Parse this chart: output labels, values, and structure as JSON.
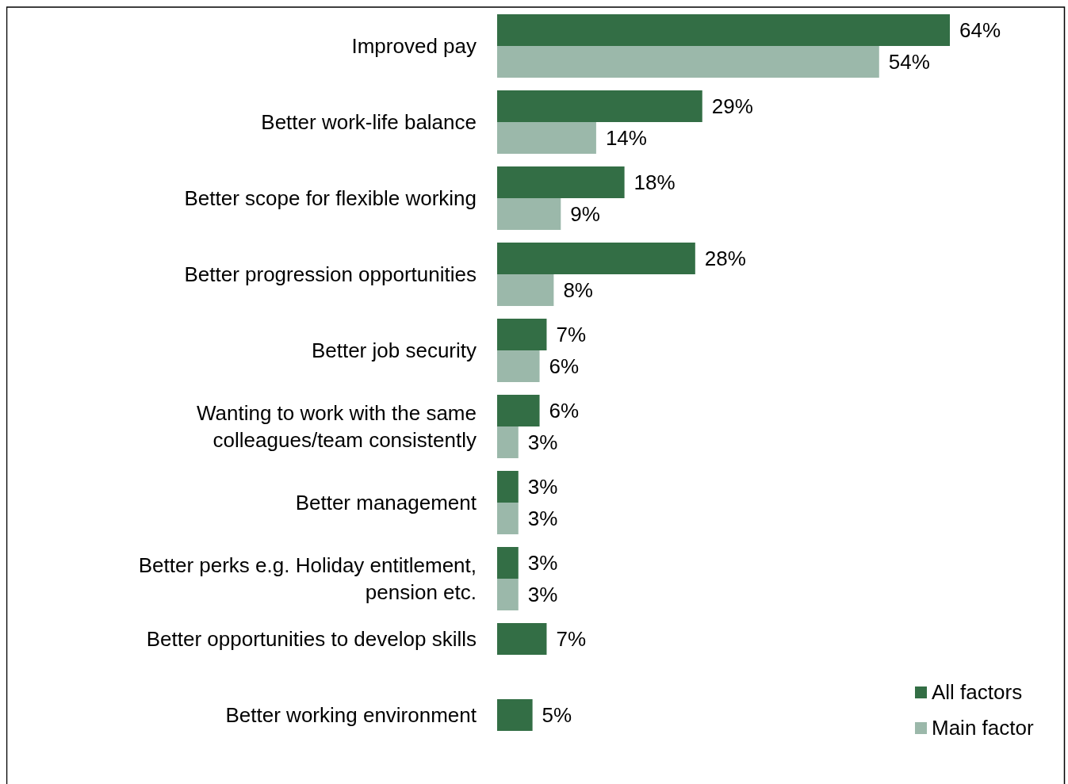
{
  "chart_data": {
    "type": "bar",
    "orientation": "horizontal",
    "categories": [
      "Improved pay",
      "Better work-life balance",
      "Better scope for flexible working",
      "Better progression opportunities",
      "Better job security",
      "Wanting to work with the same\ncolleagues/team consistently",
      "Better management",
      "Better perks e.g. Holiday entitlement,\npension etc.",
      "Better opportunities to develop skills",
      "Better working environment"
    ],
    "series": [
      {
        "name": "All factors",
        "color": "#336e45",
        "values": [
          64,
          29,
          18,
          28,
          7,
          6,
          3,
          3,
          7,
          5
        ],
        "value_labels": [
          "64%",
          "29%",
          "18%",
          "28%",
          "7%",
          "6%",
          "3%",
          "3%",
          "7%",
          "5%"
        ]
      },
      {
        "name": "Main factor",
        "color": "#9bb8aa",
        "values": [
          54,
          14,
          9,
          8,
          6,
          3,
          3,
          3,
          null,
          null
        ],
        "value_labels": [
          "54%",
          "14%",
          "9%",
          "8%",
          "6%",
          "3%",
          "3%",
          "3%",
          null,
          null
        ]
      }
    ],
    "legend": "bottom right"
  }
}
